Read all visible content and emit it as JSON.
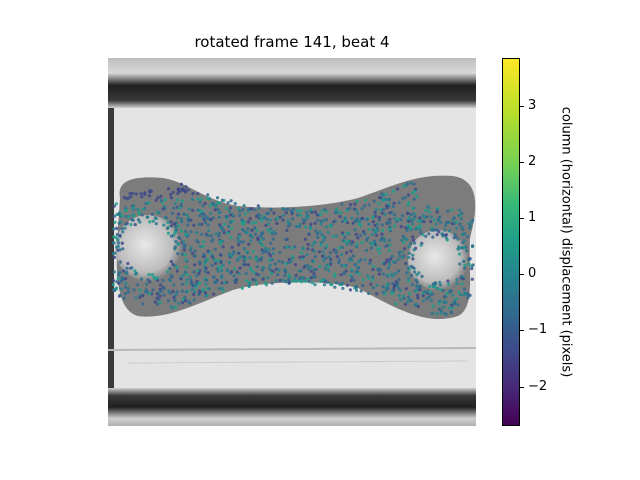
{
  "figure": {
    "title": "rotated frame 141, beat 4"
  },
  "colorbar": {
    "label": "column (horizontal) displacement (pixels)",
    "colormap": "viridis",
    "range": [
      -2.7,
      3.85
    ],
    "ticks": [
      {
        "value": -2,
        "label": "−2"
      },
      {
        "value": -1,
        "label": "−1"
      },
      {
        "value": 0,
        "label": "0"
      },
      {
        "value": 1,
        "label": "1"
      },
      {
        "value": 2,
        "label": "2"
      },
      {
        "value": 3,
        "label": "3"
      }
    ]
  },
  "image": {
    "content": "grayscale micrograph of dog-bone shaped tissue with two circular posts, overlaid with scatter points colored by displacement",
    "background_gray": "#e6e6e6",
    "bar_color": "#2a2a2a",
    "tissue_color": "#5a5a5a",
    "point_colors": [
      "#31688e",
      "#26828e",
      "#1f9e89",
      "#3e4989",
      "#2c728e"
    ]
  }
}
